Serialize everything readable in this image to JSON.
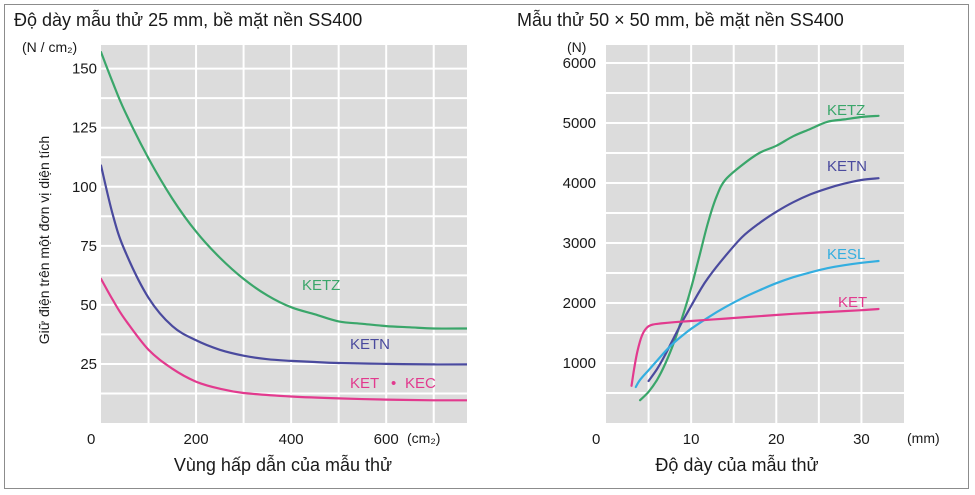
{
  "chart_data": [
    {
      "id": "left",
      "type": "line",
      "title": "Độ dày mẫu thử 25 mm, bề mặt nền SS400",
      "xlabel": "Vùng hấp dẫn của mẫu thử",
      "ylabel": "Giữ điện trên một đơn vị diện tích",
      "y_unit": "(N / cm₂)",
      "x_unit": "(cm₂)",
      "xlim": [
        0,
        770
      ],
      "ylim": [
        0,
        160
      ],
      "x_ticks": [
        0,
        200,
        400,
        600
      ],
      "x_tick_labels": [
        "0",
        "200",
        "400",
        "600"
      ],
      "y_ticks": [
        25,
        50,
        75,
        100,
        125,
        150
      ],
      "y_tick_labels": [
        "25",
        "50",
        "75",
        "100",
        "125",
        "150"
      ],
      "grid": true,
      "series": [
        {
          "name": "KETZ",
          "label": "KETZ",
          "color": "#3aa66a",
          "x": [
            0,
            25,
            50,
            100,
            150,
            200,
            250,
            300,
            350,
            400,
            450,
            500,
            550,
            600,
            650,
            700,
            770
          ],
          "y": [
            157,
            144,
            132,
            112,
            95,
            81,
            70,
            61,
            54,
            49,
            46,
            43,
            42,
            41,
            40.5,
            40,
            40
          ]
        },
        {
          "name": "KETN",
          "label": "KETN",
          "color": "#4a4a9e",
          "x": [
            0,
            25,
            50,
            100,
            150,
            200,
            250,
            300,
            350,
            400,
            450,
            500,
            600,
            700,
            770
          ],
          "y": [
            109,
            88,
            73,
            53,
            41,
            35,
            31,
            28.5,
            27,
            26.3,
            25.8,
            25.4,
            25,
            24.8,
            24.8
          ]
        },
        {
          "name": "KET・KEC",
          "label_parts": [
            "KET",
            "•",
            "KEC"
          ],
          "color": "#e23a8e",
          "x": [
            0,
            25,
            50,
            100,
            150,
            200,
            250,
            300,
            400,
            500,
            600,
            700,
            770
          ],
          "y": [
            61,
            52,
            44,
            31,
            23,
            17.5,
            14.5,
            12.7,
            11.2,
            10.4,
            9.9,
            9.6,
            9.6
          ]
        }
      ]
    },
    {
      "id": "right",
      "type": "line",
      "title": "Mẫu thử 50 × 50 mm, bề mặt nền SS400",
      "xlabel": "Độ dày của mẫu thử",
      "y_unit": "(N)",
      "x_unit": "(mm)",
      "xlim": [
        0,
        35
      ],
      "ylim": [
        0,
        6300
      ],
      "x_ticks": [
        0,
        10,
        20,
        30
      ],
      "x_tick_labels": [
        "0",
        "10",
        "20",
        "30"
      ],
      "y_ticks": [
        1000,
        2000,
        3000,
        4000,
        5000,
        6000
      ],
      "y_tick_labels": [
        "1000",
        "2000",
        "3000",
        "4000",
        "5000",
        "6000"
      ],
      "grid": true,
      "series": [
        {
          "name": "KETZ",
          "label": "KETZ",
          "color": "#3aa66a",
          "x": [
            4,
            5,
            6,
            7,
            8,
            9,
            10,
            11,
            12,
            13,
            14,
            16,
            18,
            20,
            22,
            24,
            26,
            28,
            30,
            32
          ],
          "y": [
            380,
            520,
            720,
            1000,
            1350,
            1780,
            2250,
            2800,
            3350,
            3780,
            4050,
            4300,
            4500,
            4620,
            4780,
            4900,
            5020,
            5060,
            5100,
            5120
          ]
        },
        {
          "name": "KETN",
          "label": "KETN",
          "color": "#4a4a9e",
          "x": [
            5,
            6,
            7,
            8,
            9,
            10,
            11,
            12,
            14,
            16,
            18,
            20,
            22,
            24,
            26,
            28,
            30,
            32
          ],
          "y": [
            700,
            900,
            1150,
            1430,
            1700,
            1950,
            2200,
            2420,
            2780,
            3100,
            3330,
            3520,
            3680,
            3810,
            3910,
            3990,
            4050,
            4080
          ]
        },
        {
          "name": "KESL",
          "label": "KESL",
          "color": "#33aee0",
          "x": [
            3.5,
            4,
            5,
            6,
            7,
            8,
            9,
            10,
            12,
            14,
            16,
            18,
            20,
            22,
            24,
            26,
            28,
            30,
            32
          ],
          "y": [
            600,
            720,
            880,
            1040,
            1200,
            1340,
            1460,
            1570,
            1760,
            1930,
            2080,
            2210,
            2330,
            2430,
            2510,
            2580,
            2630,
            2670,
            2700
          ]
        },
        {
          "name": "KET",
          "label": "KET",
          "color": "#e23a8e",
          "x": [
            3,
            3.3,
            3.7,
            4.2,
            4.8,
            5.5,
            6.5,
            8,
            10,
            14,
            18,
            22,
            26,
            30,
            32
          ],
          "y": [
            620,
            900,
            1200,
            1450,
            1590,
            1640,
            1660,
            1680,
            1700,
            1740,
            1780,
            1820,
            1850,
            1880,
            1900
          ]
        }
      ]
    }
  ]
}
